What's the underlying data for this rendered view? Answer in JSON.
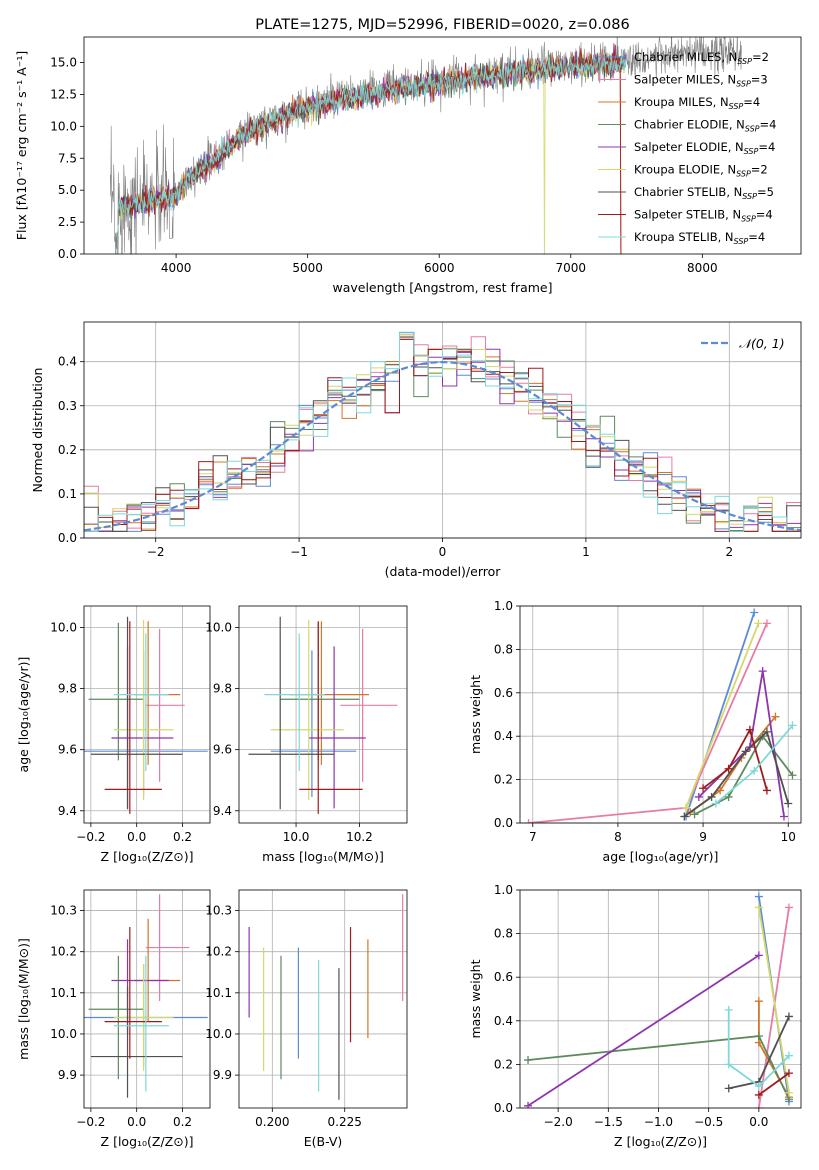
{
  "colors": [
    "#5b8bd6",
    "#e87ca6",
    "#d4762a",
    "#5e8a5e",
    "#8e35ad",
    "#d4d96a",
    "#505050",
    "#a01c1c",
    "#7fd8d8"
  ],
  "ssp_labels": [
    [
      "Chabrier MILES, N",
      "SSP",
      "=2"
    ],
    [
      "Salpeter MILES, N",
      "SSP",
      "=3"
    ],
    [
      "Kroupa MILES, N",
      "SSP",
      "=4"
    ],
    [
      "Chabrier ELODIE, N",
      "SSP",
      "=4"
    ],
    [
      "Salpeter ELODIE, N",
      "SSP",
      "=4"
    ],
    [
      "Kroupa ELODIE, N",
      "SSP",
      "=2"
    ],
    [
      "Chabrier STELIB, N",
      "SSP",
      "=5"
    ],
    [
      "Salpeter STELIB, N",
      "SSP",
      "=4"
    ],
    [
      "Kroupa STELIB, N",
      "SSP",
      "=4"
    ]
  ],
  "chart_data": [
    {
      "id": "spectrum",
      "type": "line",
      "title": "PLATE=1275, MJD=52996, FIBERID=0020, z=0.086",
      "xlabel": "wavelength [Angstrom, rest frame]",
      "ylabel": "Flux [fλ10⁻¹⁷ erg cm⁻² s⁻¹ A⁻¹]",
      "xlim": [
        3300,
        8750
      ],
      "ylim": [
        0,
        17
      ],
      "xticks": [
        4000,
        5000,
        6000,
        7000,
        8000
      ],
      "yticks": [
        0.0,
        2.5,
        5.0,
        7.5,
        10.0,
        12.5,
        15.0
      ],
      "continuum": [
        [
          3500,
          3.8
        ],
        [
          3700,
          4.2
        ],
        [
          3900,
          4.6
        ],
        [
          4000,
          4.8
        ],
        [
          4100,
          6.2
        ],
        [
          4300,
          7.6
        ],
        [
          4500,
          9.5
        ],
        [
          4700,
          10.4
        ],
        [
          4900,
          11.3
        ],
        [
          5000,
          11.6
        ],
        [
          5200,
          12.2
        ],
        [
          5400,
          12.5
        ],
        [
          5600,
          13.0
        ],
        [
          5800,
          13.3
        ],
        [
          6000,
          13.6
        ],
        [
          6200,
          13.9
        ],
        [
          6400,
          14.2
        ],
        [
          6600,
          14.4
        ],
        [
          6800,
          14.7
        ],
        [
          7000,
          14.9
        ],
        [
          7200,
          15.0
        ],
        [
          7400,
          15.2
        ],
        [
          7600,
          15.4
        ],
        [
          7800,
          15.6
        ],
        [
          8000,
          15.7
        ],
        [
          8200,
          15.8
        ],
        [
          8300,
          15.8
        ]
      ],
      "data_range": [
        3500,
        8300
      ],
      "models_range": [
        3530,
        7420
      ]
    },
    {
      "id": "residuals",
      "type": "histogram",
      "xlabel": "(data-model)/error",
      "ylabel": "Normed distribution",
      "xlim": [
        -2.5,
        2.5
      ],
      "ylim": [
        0,
        0.49
      ],
      "xticks": [
        -2,
        -1,
        0,
        1,
        2
      ],
      "yticks": [
        0.0,
        0.1,
        0.2,
        0.3,
        0.4
      ],
      "bin_width": 0.1,
      "legend": "𝒩(0, 1)"
    },
    {
      "id": "age-vs-Z",
      "type": "errorbar",
      "xlabel": "Z [log₁₀(Z/Z⊙)]",
      "ylabel": "age  [log₁₀(age/yr)]",
      "xlim": [
        -0.23,
        0.32
      ],
      "ylim": [
        9.36,
        10.07
      ],
      "xticks": [
        -0.2,
        0.0,
        0.2
      ],
      "yticks": [
        9.4,
        9.6,
        9.8,
        10.0
      ],
      "points": [
        {
          "x": 0.03,
          "y": 9.595,
          "xerr": [
            0.27,
            0.28
          ],
          "yerr": [
            0.15,
            0.33
          ]
        },
        {
          "x": 0.1,
          "y": 9.745,
          "xerr": [
            0.06,
            0.11
          ],
          "yerr": [
            0.25,
            0.25
          ]
        },
        {
          "x": 0.05,
          "y": 9.78,
          "xerr": [
            0.06,
            0.14
          ],
          "yerr": [
            0.23,
            0.24
          ]
        },
        {
          "x": -0.08,
          "y": 9.765,
          "xerr": [
            0.13,
            0.11
          ],
          "yerr": [
            0.2,
            0.25
          ]
        },
        {
          "x": -0.04,
          "y": 9.638,
          "xerr": [
            0.07,
            0.2
          ],
          "yerr": [
            0.23,
            0.3
          ]
        },
        {
          "x": 0.03,
          "y": 9.665,
          "xerr": [
            0.13,
            0.13
          ],
          "yerr": [
            0.23,
            0.36
          ]
        },
        {
          "x": -0.04,
          "y": 9.585,
          "xerr": [
            0.16,
            0.24
          ],
          "yerr": [
            0.18,
            0.45
          ]
        },
        {
          "x": -0.03,
          "y": 9.47,
          "xerr": [
            0.11,
            0.14
          ],
          "yerr": [
            0.08,
            0.55
          ]
        },
        {
          "x": 0.04,
          "y": 9.78,
          "xerr": [
            0.14,
            0.1
          ],
          "yerr": [
            0.25,
            0.2
          ]
        }
      ]
    },
    {
      "id": "age-vs-mass",
      "type": "errorbar",
      "xlabel": "mass [log₁₀(M/M⊙)]",
      "ylabel": "",
      "xlim": [
        9.82,
        10.35
      ],
      "ylim": [
        9.36,
        10.07
      ],
      "xticks": [
        10.0,
        10.2
      ],
      "yticks": [
        9.4,
        9.6,
        9.8,
        10.0
      ],
      "points": [
        {
          "x": 10.05,
          "y": 9.595,
          "xerr": [
            0.13,
            0.14
          ],
          "yerr": [
            0.15,
            0.33
          ]
        },
        {
          "x": 10.21,
          "y": 9.745,
          "xerr": [
            0.07,
            0.11
          ],
          "yerr": [
            0.25,
            0.25
          ]
        },
        {
          "x": 10.08,
          "y": 9.78,
          "xerr": [
            0.1,
            0.15
          ],
          "yerr": [
            0.23,
            0.24
          ]
        },
        {
          "x": 10.07,
          "y": 9.765,
          "xerr": [
            0.12,
            0.13
          ],
          "yerr": [
            0.2,
            0.25
          ]
        },
        {
          "x": 10.12,
          "y": 9.638,
          "xerr": [
            0.08,
            0.1
          ],
          "yerr": [
            0.23,
            0.3
          ]
        },
        {
          "x": 10.04,
          "y": 9.665,
          "xerr": [
            0.12,
            0.11
          ],
          "yerr": [
            0.23,
            0.36
          ]
        },
        {
          "x": 9.95,
          "y": 9.585,
          "xerr": [
            0.1,
            0.17
          ],
          "yerr": [
            0.18,
            0.45
          ]
        },
        {
          "x": 10.07,
          "y": 9.47,
          "xerr": [
            0.06,
            0.14
          ],
          "yerr": [
            0.08,
            0.55
          ]
        },
        {
          "x": 10.01,
          "y": 9.78,
          "xerr": [
            0.11,
            0.08
          ],
          "yerr": [
            0.25,
            0.2
          ]
        }
      ]
    },
    {
      "id": "mass-weight-vs-age",
      "type": "line",
      "xlabel": "age  [log₁₀(age/yr)]",
      "ylabel": "mass weight",
      "xlim": [
        6.85,
        10.15
      ],
      "ylim": [
        0,
        1.0
      ],
      "xticks": [
        7,
        8,
        9,
        10
      ],
      "yticks": [
        0.0,
        0.2,
        0.4,
        0.6,
        0.8,
        1.0
      ],
      "series": [
        {
          "x": [
            8.8,
            9.6
          ],
          "y": [
            0.03,
            0.97
          ]
        },
        {
          "x": [
            6.95,
            8.8,
            9.75
          ],
          "y": [
            0.0,
            0.07,
            0.92
          ]
        },
        {
          "x": [
            8.85,
            9.2,
            9.45,
            9.85
          ],
          "y": [
            0.05,
            0.15,
            0.3,
            0.49
          ]
        },
        {
          "x": [
            8.9,
            9.3,
            9.7,
            10.05
          ],
          "y": [
            0.04,
            0.12,
            0.4,
            0.22
          ]
        },
        {
          "x": [
            8.95,
            9.55,
            9.7,
            9.95
          ],
          "y": [
            0.12,
            0.35,
            0.7,
            0.03
          ]
        },
        {
          "x": [
            8.8,
            9.65
          ],
          "y": [
            0.07,
            0.92
          ]
        },
        {
          "x": [
            8.78,
            9.1,
            9.5,
            9.75,
            10.0
          ],
          "y": [
            0.03,
            0.12,
            0.33,
            0.42,
            0.09
          ]
        },
        {
          "x": [
            9.0,
            9.3,
            9.55,
            9.75
          ],
          "y": [
            0.16,
            0.25,
            0.43,
            0.15
          ]
        },
        {
          "x": [
            9.15,
            9.6,
            10.05
          ],
          "y": [
            0.09,
            0.24,
            0.45
          ]
        }
      ]
    },
    {
      "id": "mass-vs-Z",
      "type": "errorbar",
      "xlabel": "Z [log₁₀(Z/Z⊙)]",
      "ylabel": "mass [log₁₀(M/M⊙)]",
      "xlim": [
        -0.23,
        0.32
      ],
      "ylim": [
        9.82,
        10.35
      ],
      "xticks": [
        -0.2,
        0.0,
        0.2
      ],
      "yticks": [
        9.9,
        10.0,
        10.1,
        10.2,
        10.3
      ],
      "points": [
        {
          "x": 0.03,
          "y": 10.04,
          "xerr": [
            0.27,
            0.28
          ],
          "yerr": [
            0.12,
            0.13
          ]
        },
        {
          "x": 0.1,
          "y": 10.21,
          "xerr": [
            0.06,
            0.13
          ],
          "yerr": [
            0.13,
            0.13
          ]
        },
        {
          "x": 0.05,
          "y": 10.13,
          "xerr": [
            0.06,
            0.14
          ],
          "yerr": [
            0.1,
            0.15
          ]
        },
        {
          "x": -0.08,
          "y": 10.06,
          "xerr": [
            0.13,
            0.11
          ],
          "yerr": [
            0.17,
            0.13
          ]
        },
        {
          "x": -0.04,
          "y": 10.13,
          "xerr": [
            0.07,
            0.18
          ],
          "yerr": [
            0.13,
            0.1
          ]
        },
        {
          "x": 0.03,
          "y": 10.04,
          "xerr": [
            0.13,
            0.13
          ],
          "yerr": [
            0.13,
            0.13
          ]
        },
        {
          "x": -0.04,
          "y": 9.945,
          "xerr": [
            0.16,
            0.24
          ],
          "yerr": [
            0.1,
            0.17
          ]
        },
        {
          "x": -0.03,
          "y": 10.03,
          "xerr": [
            0.11,
            0.14
          ],
          "yerr": [
            0.09,
            0.23
          ]
        },
        {
          "x": 0.04,
          "y": 10.02,
          "xerr": [
            0.14,
            0.1
          ],
          "yerr": [
            0.16,
            0.17
          ]
        }
      ]
    },
    {
      "id": "mass-vs-ebv",
      "type": "errorbar",
      "xlabel": "E(B-V)",
      "ylabel": "",
      "xlim": [
        0.1885,
        0.2465
      ],
      "ylim": [
        9.82,
        10.35
      ],
      "xticks": [
        0.2,
        0.225
      ],
      "ytick_labels_shown": true,
      "yticks": [
        9.9,
        10.0,
        10.1,
        10.2,
        10.3
      ],
      "points": [
        {
          "x": 0.209,
          "y": 10.07,
          "xerr": [
            0,
            0
          ],
          "yerr": [
            0.13,
            0.14
          ]
        },
        {
          "x": 0.245,
          "y": 10.21,
          "xerr": [
            0,
            0
          ],
          "yerr": [
            0.13,
            0.13
          ]
        },
        {
          "x": 0.233,
          "y": 10.11,
          "xerr": [
            0,
            0
          ],
          "yerr": [
            0.12,
            0.12
          ]
        },
        {
          "x": 0.203,
          "y": 10.06,
          "xerr": [
            0,
            0
          ],
          "yerr": [
            0.17,
            0.13
          ]
        },
        {
          "x": 0.192,
          "y": 10.15,
          "xerr": [
            0,
            0
          ],
          "yerr": [
            0.11,
            0.11
          ]
        },
        {
          "x": 0.197,
          "y": 10.06,
          "xerr": [
            0,
            0
          ],
          "yerr": [
            0.15,
            0.15
          ]
        },
        {
          "x": 0.223,
          "y": 10.0,
          "xerr": [
            0,
            0
          ],
          "yerr": [
            0.16,
            0.16
          ]
        },
        {
          "x": 0.227,
          "y": 10.1,
          "xerr": [
            0,
            0
          ],
          "yerr": [
            0.12,
            0.16
          ]
        },
        {
          "x": 0.216,
          "y": 10.02,
          "xerr": [
            0,
            0
          ],
          "yerr": [
            0.16,
            0.16
          ]
        }
      ]
    },
    {
      "id": "mass-weight-vs-Z",
      "type": "line",
      "xlabel": "Z [log₁₀(Z/Z⊙)]",
      "ylabel": "mass weight",
      "xlim": [
        -2.38,
        0.42
      ],
      "ylim": [
        0,
        1.0
      ],
      "xticks": [
        -2.0,
        -1.5,
        -1.0,
        -0.5,
        0.0
      ],
      "yticks": [
        0.0,
        0.2,
        0.4,
        0.6,
        0.8,
        1.0
      ],
      "series": [
        {
          "x": [
            0.0,
            0.3
          ],
          "y": [
            0.97,
            0.03
          ]
        },
        {
          "x": [
            0.0,
            0.3
          ],
          "y": [
            0.0,
            0.92
          ]
        },
        {
          "x": [
            0.0,
            0.0,
            0.3
          ],
          "y": [
            0.49,
            0.3,
            0.05
          ]
        },
        {
          "x": [
            -2.3,
            0.0,
            0.3
          ],
          "y": [
            0.22,
            0.33,
            0.04
          ]
        },
        {
          "x": [
            -2.3,
            0.0
          ],
          "y": [
            0.01,
            0.7
          ]
        },
        {
          "x": [
            0.0,
            0.3
          ],
          "y": [
            0.92,
            0.07
          ]
        },
        {
          "x": [
            -0.3,
            0.0,
            0.3
          ],
          "y": [
            0.09,
            0.12,
            0.42
          ]
        },
        {
          "x": [
            0.0,
            0.3
          ],
          "y": [
            0.06,
            0.16
          ]
        },
        {
          "x": [
            -0.3,
            -0.3,
            0.0,
            0.3
          ],
          "y": [
            0.45,
            0.2,
            0.1,
            0.24
          ]
        }
      ]
    }
  ]
}
